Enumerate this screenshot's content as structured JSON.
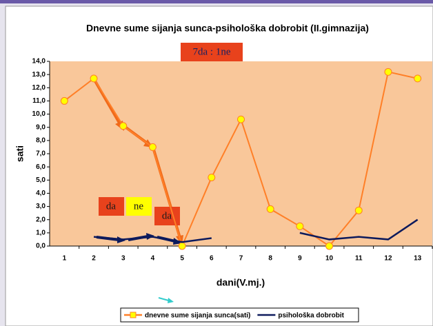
{
  "chart_data": {
    "type": "line",
    "title": "Dnevne sume sijanja sunca-psihološka dobrobit (II.gimnazija)",
    "x_label": "dani(V.mj.)",
    "y_label": "sati",
    "categories": [
      "1",
      "2",
      "3",
      "4",
      "5",
      "6",
      "7",
      "8",
      "9",
      "10",
      "11",
      "12",
      "13"
    ],
    "series": [
      {
        "name": "dnevne sume sijanja sunca(sati)",
        "color": "#ff7f27",
        "marker_color": "#ffff00",
        "values": [
          11.0,
          12.7,
          9.1,
          7.5,
          0.0,
          5.2,
          9.6,
          2.8,
          1.5,
          0.0,
          2.7,
          13.2,
          12.7
        ]
      },
      {
        "name": "psihološka dobrobit",
        "color": "#0d1a5c",
        "values": [
          null,
          0.7,
          0.5,
          0.7,
          0.3,
          0.6,
          null,
          null,
          1.0,
          0.5,
          0.7,
          0.5,
          2.0
        ]
      }
    ],
    "ylim": [
      0,
      14
    ],
    "yticks": [
      {
        "value": 0,
        "label": "0,0"
      },
      {
        "value": 1,
        "label": "1,0"
      },
      {
        "value": 2,
        "label": "2,0"
      },
      {
        "value": 3,
        "label": "3,0"
      },
      {
        "value": 4,
        "label": "4,0"
      },
      {
        "value": 5,
        "label": "5,0"
      },
      {
        "value": 6,
        "label": "6,0"
      },
      {
        "value": 7,
        "label": "7,0"
      },
      {
        "value": 8,
        "label": "8,0"
      },
      {
        "value": 9,
        "label": "9,0"
      },
      {
        "value": 10,
        "label": "10,0"
      },
      {
        "value": 11,
        "label": "11,0"
      },
      {
        "value": 12,
        "label": "12,0"
      },
      {
        "value": 13,
        "label": "13,0"
      },
      {
        "value": 14,
        "label": "14,0"
      }
    ],
    "grid": false,
    "legend": "bottom",
    "annotations": [
      "7da : 1ne",
      "da",
      "ne",
      "da"
    ]
  }
}
